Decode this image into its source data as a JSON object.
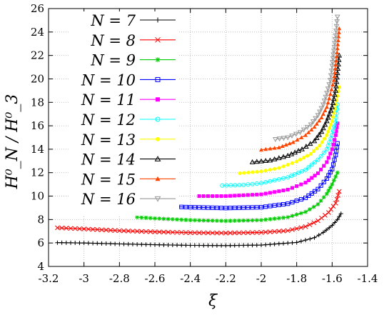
{
  "chart_data": {
    "type": "scatter",
    "title": "",
    "xlabel": "ξ",
    "ylabel": "H⁰_N / H⁰_3",
    "xlim": [
      -3.2,
      -1.4
    ],
    "ylim": [
      4,
      26
    ],
    "x_ticks": [
      "-3.2",
      "-3",
      "-2.8",
      "-2.6",
      "-2.4",
      "-2.2",
      "-2",
      "-1.8",
      "-1.6",
      "-1.4"
    ],
    "y_ticks": [
      "4",
      "6",
      "8",
      "10",
      "12",
      "14",
      "16",
      "18",
      "20",
      "22",
      "24",
      "26"
    ],
    "grid": true,
    "legend_position": "top-left",
    "series": [
      {
        "name": "N = 7",
        "color": "#000000",
        "marker": "plus",
        "points": [
          [
            -3.15,
            6.03
          ],
          [
            -3.0,
            6.0
          ],
          [
            -2.8,
            5.92
          ],
          [
            -2.6,
            5.85
          ],
          [
            -2.4,
            5.8
          ],
          [
            -2.2,
            5.78
          ],
          [
            -2.0,
            5.82
          ],
          [
            -1.8,
            6.05
          ],
          [
            -1.7,
            6.45
          ],
          [
            -1.65,
            6.9
          ],
          [
            -1.6,
            7.5
          ],
          [
            -1.57,
            8.0
          ],
          [
            -1.55,
            8.5
          ]
        ]
      },
      {
        "name": "N = 8",
        "color": "#ff0000",
        "marker": "cross",
        "points": [
          [
            -3.15,
            7.3
          ],
          [
            -3.0,
            7.2
          ],
          [
            -2.8,
            7.05
          ],
          [
            -2.6,
            6.95
          ],
          [
            -2.4,
            6.88
          ],
          [
            -2.2,
            6.85
          ],
          [
            -2.0,
            6.9
          ],
          [
            -1.85,
            7.05
          ],
          [
            -1.75,
            7.4
          ],
          [
            -1.68,
            7.9
          ],
          [
            -1.62,
            8.6
          ],
          [
            -1.58,
            9.4
          ],
          [
            -1.56,
            10.4
          ]
        ]
      },
      {
        "name": "N = 9",
        "color": "#00cc00",
        "marker": "star",
        "points": [
          [
            -2.7,
            8.2
          ],
          [
            -2.6,
            8.1
          ],
          [
            -2.4,
            7.95
          ],
          [
            -2.2,
            7.88
          ],
          [
            -2.0,
            7.95
          ],
          [
            -1.85,
            8.2
          ],
          [
            -1.75,
            8.65
          ],
          [
            -1.68,
            9.3
          ],
          [
            -1.63,
            10.2
          ],
          [
            -1.6,
            11.0
          ],
          [
            -1.57,
            12.0
          ]
        ]
      },
      {
        "name": "N = 10",
        "color": "#0000ff",
        "marker": "square",
        "points": [
          [
            -2.5,
            9.1
          ],
          [
            -2.4,
            9.05
          ],
          [
            -2.2,
            8.98
          ],
          [
            -2.0,
            9.05
          ],
          [
            -1.85,
            9.35
          ],
          [
            -1.75,
            9.85
          ],
          [
            -1.68,
            10.6
          ],
          [
            -1.63,
            11.5
          ],
          [
            -1.6,
            12.3
          ],
          [
            -1.58,
            13.5
          ],
          [
            -1.57,
            14.5
          ]
        ]
      },
      {
        "name": "N = 11",
        "color": "#ff00ff",
        "marker": "filled-square",
        "points": [
          [
            -2.35,
            10.0
          ],
          [
            -2.2,
            10.0
          ],
          [
            -2.0,
            10.15
          ],
          [
            -1.85,
            10.55
          ],
          [
            -1.75,
            11.15
          ],
          [
            -1.68,
            11.95
          ],
          [
            -1.63,
            12.9
          ],
          [
            -1.6,
            14.0
          ],
          [
            -1.58,
            15.2
          ],
          [
            -1.57,
            16.2
          ]
        ]
      },
      {
        "name": "N = 12",
        "color": "#00ffff",
        "marker": "circle",
        "points": [
          [
            -2.22,
            10.9
          ],
          [
            -2.1,
            10.95
          ],
          [
            -2.0,
            11.1
          ],
          [
            -1.85,
            11.6
          ],
          [
            -1.75,
            12.25
          ],
          [
            -1.68,
            13.1
          ],
          [
            -1.63,
            14.0
          ],
          [
            -1.6,
            15.2
          ],
          [
            -1.58,
            16.3
          ],
          [
            -1.57,
            17.8
          ]
        ]
      },
      {
        "name": "N = 13",
        "color": "#ffff00",
        "marker": "filled-circle",
        "points": [
          [
            -2.12,
            11.95
          ],
          [
            -2.0,
            12.1
          ],
          [
            -1.9,
            12.4
          ],
          [
            -1.8,
            12.95
          ],
          [
            -1.72,
            13.6
          ],
          [
            -1.67,
            14.3
          ],
          [
            -1.63,
            15.2
          ],
          [
            -1.6,
            16.4
          ],
          [
            -1.58,
            17.8
          ],
          [
            -1.56,
            19.3
          ]
        ]
      },
      {
        "name": "N = 14",
        "color": "#000000",
        "marker": "triangle",
        "points": [
          [
            -2.05,
            12.9
          ],
          [
            -1.95,
            13.05
          ],
          [
            -1.85,
            13.45
          ],
          [
            -1.77,
            14.0
          ],
          [
            -1.7,
            14.7
          ],
          [
            -1.66,
            15.5
          ],
          [
            -1.63,
            16.4
          ],
          [
            -1.6,
            17.6
          ],
          [
            -1.58,
            19.0
          ],
          [
            -1.57,
            20.5
          ],
          [
            -1.56,
            22.0
          ]
        ]
      },
      {
        "name": "N = 15",
        "color": "#ff4400",
        "marker": "filled-triangle",
        "points": [
          [
            -2.0,
            13.95
          ],
          [
            -1.9,
            14.15
          ],
          [
            -1.82,
            14.6
          ],
          [
            -1.75,
            15.2
          ],
          [
            -1.7,
            15.9
          ],
          [
            -1.66,
            16.7
          ],
          [
            -1.63,
            17.6
          ],
          [
            -1.61,
            18.7
          ],
          [
            -1.59,
            19.9
          ],
          [
            -1.58,
            21.2
          ],
          [
            -1.57,
            22.6
          ],
          [
            -1.56,
            24.3
          ]
        ]
      },
      {
        "name": "N = 16",
        "color": "#999999",
        "marker": "inv-triangle",
        "points": [
          [
            -1.92,
            14.85
          ],
          [
            -1.85,
            15.0
          ],
          [
            -1.78,
            15.45
          ],
          [
            -1.72,
            16.1
          ],
          [
            -1.68,
            16.9
          ],
          [
            -1.65,
            17.8
          ],
          [
            -1.63,
            18.8
          ],
          [
            -1.61,
            19.9
          ],
          [
            -1.6,
            21.1
          ],
          [
            -1.59,
            22.4
          ],
          [
            -1.58,
            23.7
          ],
          [
            -1.57,
            25.3
          ]
        ]
      }
    ]
  }
}
